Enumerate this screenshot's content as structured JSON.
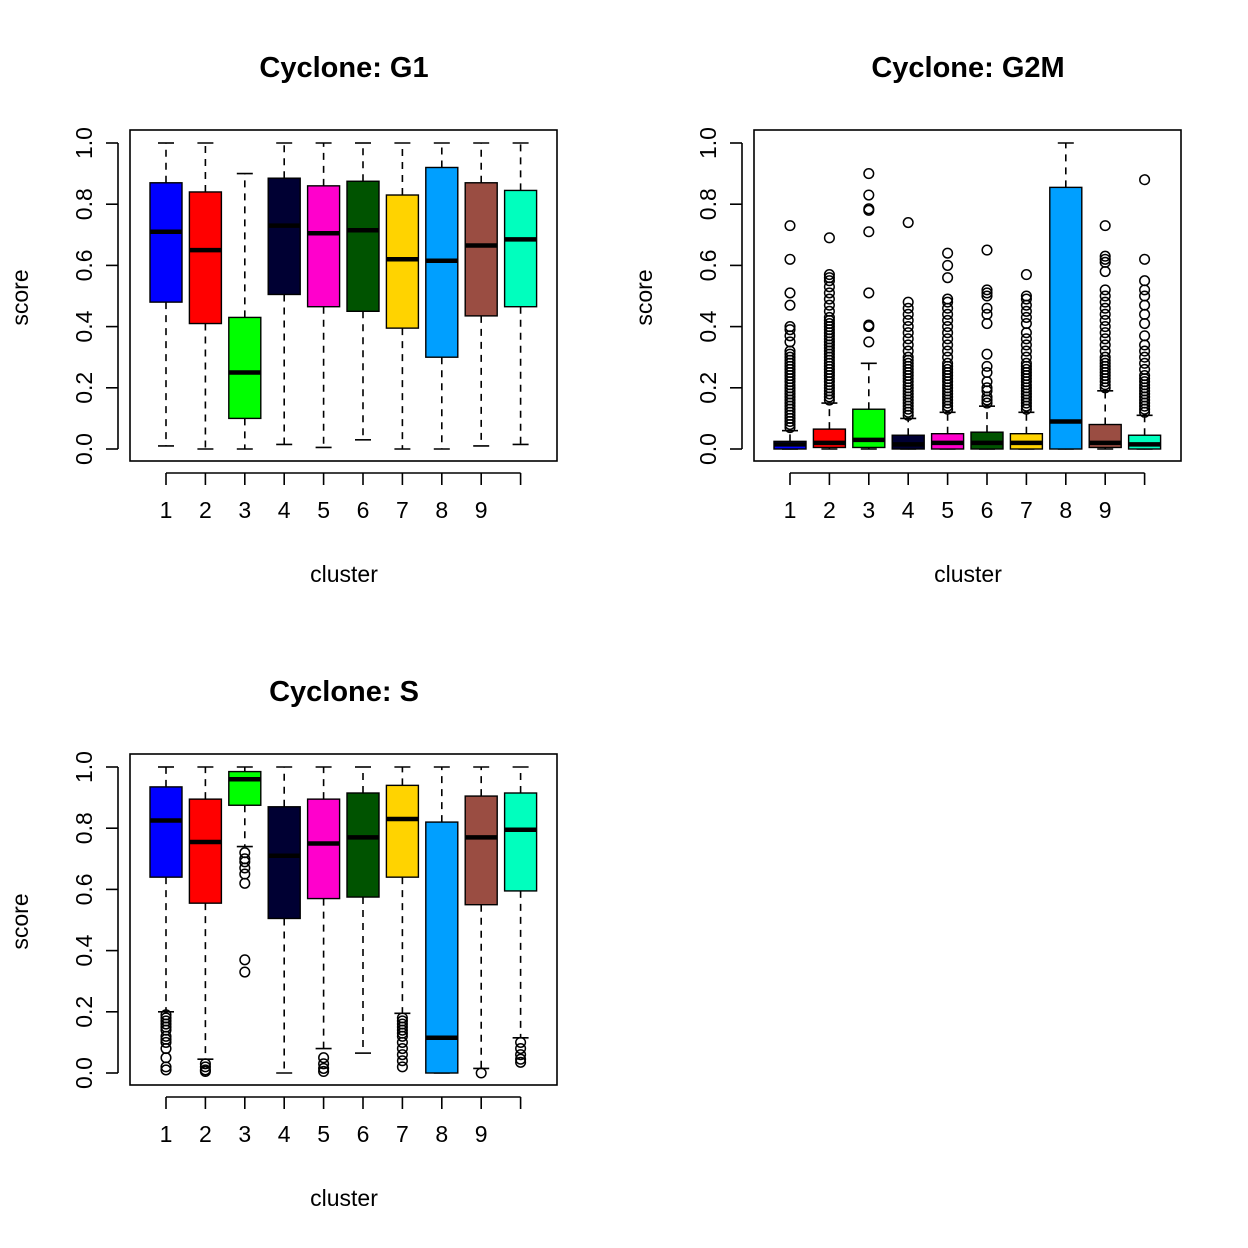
{
  "chart_data": [
    {
      "type": "box",
      "title": "Cyclone: G1",
      "xlabel": "cluster",
      "ylabel": "score",
      "ylim": [
        0,
        1
      ],
      "yticks": [
        "0.0",
        "0.2",
        "0.4",
        "0.6",
        "0.8",
        "1.0"
      ],
      "xtick_labels": [
        "1",
        "2",
        "3",
        "4",
        "5",
        "6",
        "7",
        "8",
        "9",
        ""
      ],
      "boxes": [
        {
          "cluster": "1",
          "color": "#0000FF",
          "whisker_low": 0.01,
          "q1": 0.48,
          "median": 0.71,
          "q3": 0.87,
          "whisker_high": 1.0,
          "outliers": []
        },
        {
          "cluster": "2",
          "color": "#FF0000",
          "whisker_low": 0.0,
          "q1": 0.41,
          "median": 0.65,
          "q3": 0.84,
          "whisker_high": 1.0,
          "outliers": []
        },
        {
          "cluster": "3",
          "color": "#00FF00",
          "whisker_low": 0.0,
          "q1": 0.1,
          "median": 0.25,
          "q3": 0.43,
          "whisker_high": 0.9,
          "outliers": []
        },
        {
          "cluster": "4",
          "color": "#000033",
          "whisker_low": 0.015,
          "q1": 0.505,
          "median": 0.73,
          "q3": 0.885,
          "whisker_high": 1.0,
          "outliers": []
        },
        {
          "cluster": "5",
          "color": "#FF00CC",
          "whisker_low": 0.005,
          "q1": 0.465,
          "median": 0.705,
          "q3": 0.86,
          "whisker_high": 1.0,
          "outliers": []
        },
        {
          "cluster": "6",
          "color": "#005300",
          "whisker_low": 0.03,
          "q1": 0.45,
          "median": 0.715,
          "q3": 0.875,
          "whisker_high": 1.0,
          "outliers": []
        },
        {
          "cluster": "7",
          "color": "#FFD300",
          "whisker_low": 0.0,
          "q1": 0.395,
          "median": 0.62,
          "q3": 0.83,
          "whisker_high": 1.0,
          "outliers": []
        },
        {
          "cluster": "8",
          "color": "#009FFF",
          "whisker_low": 0.0,
          "q1": 0.3,
          "median": 0.615,
          "q3": 0.92,
          "whisker_high": 1.0,
          "outliers": []
        },
        {
          "cluster": "9",
          "color": "#9A4D42",
          "whisker_low": 0.01,
          "q1": 0.435,
          "median": 0.665,
          "q3": 0.87,
          "whisker_high": 1.0,
          "outliers": []
        },
        {
          "cluster": "10",
          "color": "#00FFBE",
          "whisker_low": 0.015,
          "q1": 0.465,
          "median": 0.685,
          "q3": 0.845,
          "whisker_high": 1.0,
          "outliers": []
        }
      ]
    },
    {
      "type": "box",
      "title": "Cyclone: G2M",
      "xlabel": "cluster",
      "ylabel": "score",
      "ylim": [
        0,
        1
      ],
      "yticks": [
        "0.0",
        "0.2",
        "0.4",
        "0.6",
        "0.8",
        "1.0"
      ],
      "xtick_labels": [
        "1",
        "2",
        "3",
        "4",
        "5",
        "6",
        "7",
        "8",
        "9",
        ""
      ],
      "boxes": [
        {
          "cluster": "1",
          "color": "#0000FF",
          "whisker_low": 0.0,
          "q1": 0.0,
          "median": 0.015,
          "q3": 0.025,
          "whisker_high": 0.06,
          "outliers": [
            0.07,
            0.08,
            0.09,
            0.1,
            0.11,
            0.12,
            0.13,
            0.14,
            0.15,
            0.16,
            0.17,
            0.18,
            0.19,
            0.2,
            0.21,
            0.22,
            0.23,
            0.24,
            0.25,
            0.26,
            0.27,
            0.28,
            0.29,
            0.3,
            0.31,
            0.32,
            0.35,
            0.37,
            0.39,
            0.4,
            0.47,
            0.51,
            0.62,
            0.73
          ]
        },
        {
          "cluster": "2",
          "color": "#FF0000",
          "whisker_low": 0.0,
          "q1": 0.005,
          "median": 0.02,
          "q3": 0.065,
          "whisker_high": 0.15,
          "outliers": [
            0.16,
            0.17,
            0.18,
            0.19,
            0.2,
            0.21,
            0.22,
            0.23,
            0.24,
            0.25,
            0.26,
            0.27,
            0.28,
            0.29,
            0.3,
            0.31,
            0.32,
            0.33,
            0.34,
            0.35,
            0.36,
            0.37,
            0.38,
            0.39,
            0.4,
            0.41,
            0.42,
            0.43,
            0.45,
            0.47,
            0.49,
            0.51,
            0.53,
            0.55,
            0.56,
            0.57,
            0.69
          ]
        },
        {
          "cluster": "3",
          "color": "#00FF00",
          "whisker_low": 0.0,
          "q1": 0.005,
          "median": 0.03,
          "q3": 0.13,
          "whisker_high": 0.28,
          "outliers": [
            0.35,
            0.4,
            0.405,
            0.51,
            0.71,
            0.78,
            0.785,
            0.83,
            0.9
          ]
        },
        {
          "cluster": "4",
          "color": "#000033",
          "whisker_low": 0.0,
          "q1": 0.0,
          "median": 0.015,
          "q3": 0.045,
          "whisker_high": 0.1,
          "outliers": [
            0.11,
            0.12,
            0.13,
            0.14,
            0.15,
            0.16,
            0.17,
            0.18,
            0.19,
            0.2,
            0.21,
            0.22,
            0.23,
            0.24,
            0.25,
            0.26,
            0.27,
            0.28,
            0.29,
            0.3,
            0.32,
            0.34,
            0.36,
            0.38,
            0.4,
            0.42,
            0.44,
            0.46,
            0.48,
            0.74
          ]
        },
        {
          "cluster": "5",
          "color": "#FF00CC",
          "whisker_low": 0.0,
          "q1": 0.0,
          "median": 0.02,
          "q3": 0.05,
          "whisker_high": 0.12,
          "outliers": [
            0.13,
            0.14,
            0.15,
            0.16,
            0.17,
            0.18,
            0.19,
            0.2,
            0.21,
            0.22,
            0.23,
            0.24,
            0.25,
            0.26,
            0.27,
            0.28,
            0.3,
            0.32,
            0.34,
            0.36,
            0.38,
            0.4,
            0.42,
            0.44,
            0.46,
            0.48,
            0.49,
            0.56,
            0.6,
            0.64
          ]
        },
        {
          "cluster": "6",
          "color": "#005300",
          "whisker_low": 0.0,
          "q1": 0.0,
          "median": 0.02,
          "q3": 0.055,
          "whisker_high": 0.14,
          "outliers": [
            0.15,
            0.16,
            0.17,
            0.19,
            0.2,
            0.22,
            0.25,
            0.27,
            0.31,
            0.41,
            0.44,
            0.46,
            0.5,
            0.51,
            0.52,
            0.65
          ]
        },
        {
          "cluster": "7",
          "color": "#FFD300",
          "whisker_low": 0.0,
          "q1": 0.0,
          "median": 0.02,
          "q3": 0.05,
          "whisker_high": 0.12,
          "outliers": [
            0.13,
            0.14,
            0.15,
            0.16,
            0.17,
            0.18,
            0.19,
            0.2,
            0.21,
            0.22,
            0.23,
            0.24,
            0.25,
            0.26,
            0.27,
            0.28,
            0.3,
            0.32,
            0.34,
            0.36,
            0.38,
            0.41,
            0.43,
            0.45,
            0.47,
            0.49,
            0.5,
            0.57
          ]
        },
        {
          "cluster": "8",
          "color": "#009FFF",
          "whisker_low": 0.0,
          "q1": 0.0,
          "median": 0.09,
          "q3": 0.855,
          "whisker_high": 1.0,
          "outliers": []
        },
        {
          "cluster": "9",
          "color": "#9A4D42",
          "whisker_low": 0.0,
          "q1": 0.005,
          "median": 0.02,
          "q3": 0.08,
          "whisker_high": 0.19,
          "outliers": [
            0.2,
            0.21,
            0.22,
            0.23,
            0.24,
            0.25,
            0.26,
            0.27,
            0.28,
            0.29,
            0.3,
            0.32,
            0.34,
            0.36,
            0.38,
            0.4,
            0.42,
            0.44,
            0.46,
            0.48,
            0.5,
            0.52,
            0.58,
            0.61,
            0.62,
            0.63,
            0.73
          ]
        },
        {
          "cluster": "10",
          "color": "#00FFBE",
          "whisker_low": 0.0,
          "q1": 0.0,
          "median": 0.015,
          "q3": 0.045,
          "whisker_high": 0.11,
          "outliers": [
            0.12,
            0.13,
            0.14,
            0.15,
            0.16,
            0.17,
            0.18,
            0.19,
            0.2,
            0.21,
            0.22,
            0.23,
            0.24,
            0.26,
            0.28,
            0.3,
            0.32,
            0.34,
            0.37,
            0.41,
            0.44,
            0.47,
            0.5,
            0.52,
            0.55,
            0.62,
            0.88
          ]
        }
      ]
    },
    {
      "type": "box",
      "title": "Cyclone: S",
      "xlabel": "cluster",
      "ylabel": "score",
      "ylim": [
        0,
        1
      ],
      "yticks": [
        "0.0",
        "0.2",
        "0.4",
        "0.6",
        "0.8",
        "1.0"
      ],
      "xtick_labels": [
        "1",
        "2",
        "3",
        "4",
        "5",
        "6",
        "7",
        "8",
        "9",
        ""
      ],
      "boxes": [
        {
          "cluster": "1",
          "color": "#0000FF",
          "whisker_low": 0.2,
          "q1": 0.64,
          "median": 0.825,
          "q3": 0.935,
          "whisker_high": 1.0,
          "outliers": [
            0.01,
            0.02,
            0.05,
            0.08,
            0.1,
            0.11,
            0.12,
            0.14,
            0.15,
            0.16,
            0.17,
            0.18,
            0.19
          ]
        },
        {
          "cluster": "2",
          "color": "#FF0000",
          "whisker_low": 0.045,
          "q1": 0.555,
          "median": 0.755,
          "q3": 0.895,
          "whisker_high": 1.0,
          "outliers": [
            0.005,
            0.01,
            0.02,
            0.03
          ]
        },
        {
          "cluster": "3",
          "color": "#00FF00",
          "whisker_low": 0.74,
          "q1": 0.875,
          "median": 0.96,
          "q3": 0.985,
          "whisker_high": 1.0,
          "outliers": [
            0.33,
            0.37,
            0.62,
            0.65,
            0.67,
            0.69,
            0.7,
            0.72
          ]
        },
        {
          "cluster": "4",
          "color": "#000033",
          "whisker_low": 0.0,
          "q1": 0.505,
          "median": 0.71,
          "q3": 0.87,
          "whisker_high": 1.0,
          "outliers": []
        },
        {
          "cluster": "5",
          "color": "#FF00CC",
          "whisker_low": 0.08,
          "q1": 0.57,
          "median": 0.75,
          "q3": 0.895,
          "whisker_high": 1.0,
          "outliers": [
            0.005,
            0.015,
            0.03,
            0.05
          ]
        },
        {
          "cluster": "6",
          "color": "#005300",
          "whisker_low": 0.065,
          "q1": 0.575,
          "median": 0.77,
          "q3": 0.915,
          "whisker_high": 1.0,
          "outliers": []
        },
        {
          "cluster": "7",
          "color": "#FFD300",
          "whisker_low": 0.195,
          "q1": 0.64,
          "median": 0.83,
          "q3": 0.94,
          "whisker_high": 1.0,
          "outliers": [
            0.02,
            0.04,
            0.06,
            0.08,
            0.1,
            0.12,
            0.13,
            0.14,
            0.15,
            0.16,
            0.17,
            0.18
          ]
        },
        {
          "cluster": "8",
          "color": "#009FFF",
          "whisker_low": 0.0,
          "q1": 0.0,
          "median": 0.115,
          "q3": 0.82,
          "whisker_high": 1.0,
          "outliers": []
        },
        {
          "cluster": "9",
          "color": "#9A4D42",
          "whisker_low": 0.015,
          "q1": 0.55,
          "median": 0.77,
          "q3": 0.905,
          "whisker_high": 1.0,
          "outliers": [
            0.0
          ]
        },
        {
          "cluster": "10",
          "color": "#00FFBE",
          "whisker_low": 0.115,
          "q1": 0.595,
          "median": 0.795,
          "q3": 0.915,
          "whisker_high": 1.0,
          "outliers": [
            0.035,
            0.045,
            0.06,
            0.08,
            0.1
          ]
        }
      ]
    }
  ]
}
